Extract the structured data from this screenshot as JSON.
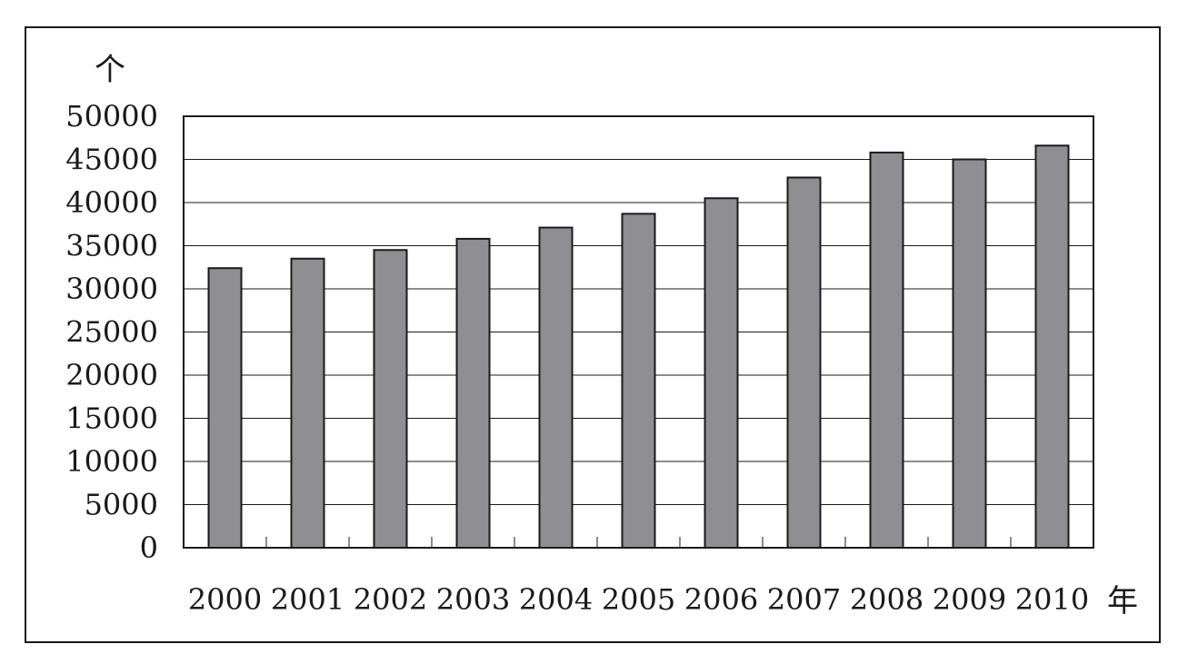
{
  "chart_data": {
    "type": "bar",
    "title": "",
    "ylabel": "个",
    "xlabel": "年",
    "categories": [
      "2000",
      "2001",
      "2002",
      "2003",
      "2004",
      "2005",
      "2006",
      "2007",
      "2008",
      "2009",
      "2010"
    ],
    "values": [
      32400,
      33500,
      34500,
      35800,
      37100,
      38700,
      40500,
      42900,
      45800,
      45000,
      46600
    ],
    "ylim": [
      0,
      50000
    ],
    "yticks": [
      0,
      5000,
      10000,
      15000,
      20000,
      25000,
      30000,
      35000,
      40000,
      45000,
      50000
    ],
    "grid": true,
    "legend": "none",
    "colors": {
      "bar": "#8f8f93",
      "stroke": "#1a1a1a",
      "grid": "#1a1a1a"
    }
  }
}
